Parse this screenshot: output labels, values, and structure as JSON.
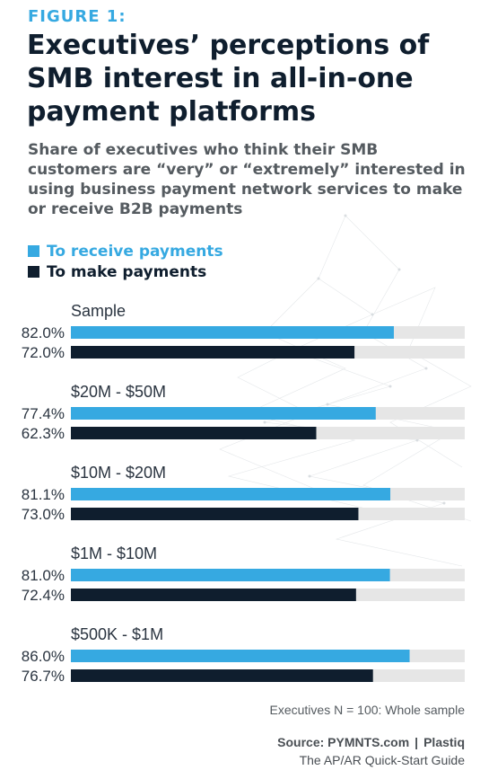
{
  "figure_label": "FIGURE 1:",
  "title": "Executives’ perceptions of SMB interest in all-in-one payment platforms",
  "subtitle": "Share of executives who think their SMB customers are “very” or “extremely” interested in using business payment network services to make or receive B2B payments",
  "note": "Executives N = 100: Whole sample",
  "source": {
    "label": "Source: PYMNTS.com",
    "separator": "|",
    "partner": "Plastiq"
  },
  "guide": "The AP/AR Quick-Start Guide",
  "colors": {
    "receive": "#36a9e1",
    "make": "#0f1e2e",
    "track": "#e6e6e6"
  },
  "chart_data": {
    "type": "bar",
    "orientation": "horizontal",
    "xlim": [
      0,
      100
    ],
    "unit": "%",
    "categories": [
      "Sample",
      "$20M - $50M",
      "$10M - $20M",
      "$1M - $10M",
      "$500K - $1M"
    ],
    "series": [
      {
        "name": "To receive payments",
        "color": "#36a9e1",
        "values": [
          82.0,
          77.4,
          81.1,
          81.0,
          86.0
        ]
      },
      {
        "name": "To make payments",
        "color": "#0f1e2e",
        "values": [
          72.0,
          62.3,
          73.0,
          72.4,
          76.7
        ]
      }
    ],
    "labels": [
      [
        "82.0%",
        "72.0%"
      ],
      [
        "77.4%",
        "62.3%"
      ],
      [
        "81.1%",
        "73.0%"
      ],
      [
        "81.0%",
        "72.4%"
      ],
      [
        "86.0%",
        "76.7%"
      ]
    ]
  }
}
